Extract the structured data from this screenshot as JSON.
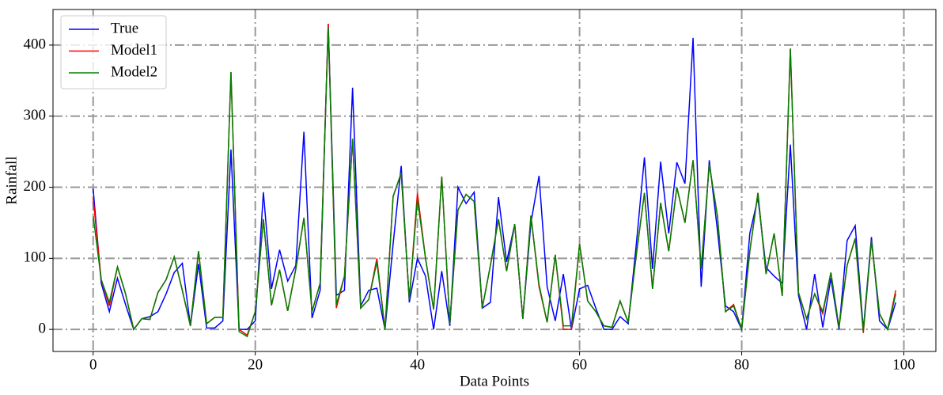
{
  "chart_data": {
    "type": "line",
    "xlabel": "Data Points",
    "ylabel": "Rainfall",
    "xlim": [
      -4.95,
      103.95
    ],
    "ylim": [
      -31,
      450
    ],
    "xticks": [
      0,
      20,
      40,
      60,
      80,
      100
    ],
    "yticks": [
      0,
      100,
      200,
      300,
      400
    ],
    "grid": true,
    "legend": "upper left",
    "series": [
      {
        "name": "True",
        "color": "#0000ff",
        "values": [
          198,
          65,
          25,
          72,
          35,
          0,
          15,
          18,
          25,
          50,
          80,
          93,
          5,
          92,
          2,
          2,
          12,
          253,
          0,
          0,
          12,
          193,
          57,
          112,
          68,
          90,
          278,
          16,
          55,
          430,
          48,
          55,
          340,
          33,
          55,
          58,
          0,
          120,
          230,
          38,
          100,
          75,
          0,
          82,
          5,
          200,
          177,
          193,
          30,
          38,
          186,
          95,
          148,
          15,
          150,
          216,
          60,
          12,
          78,
          0,
          57,
          62,
          30,
          0,
          0,
          18,
          8,
          120,
          242,
          85,
          236,
          135,
          235,
          205,
          410,
          60,
          238,
          140,
          33,
          25,
          0,
          135,
          185,
          87,
          75,
          65,
          260,
          48,
          0,
          78,
          3,
          72,
          0,
          125,
          146,
          0,
          130,
          12,
          0,
          38
        ]
      },
      {
        "name": "Model1",
        "color": "#ff0000",
        "values": [
          185,
          70,
          33,
          88,
          50,
          0,
          15,
          14,
          52,
          70,
          102,
          55,
          5,
          110,
          8,
          17,
          17,
          362,
          0,
          -8,
          25,
          155,
          34,
          84,
          26,
          85,
          157,
          25,
          65,
          430,
          30,
          75,
          268,
          30,
          42,
          100,
          0,
          187,
          220,
          42,
          192,
          100,
          28,
          215,
          8,
          168,
          190,
          180,
          30,
          90,
          155,
          82,
          148,
          15,
          160,
          60,
          10,
          105,
          0,
          0,
          120,
          40,
          25,
          5,
          3,
          40,
          10,
          105,
          192,
          57,
          178,
          110,
          200,
          150,
          238,
          85,
          232,
          160,
          25,
          35,
          0,
          110,
          192,
          78,
          135,
          47,
          395,
          52,
          15,
          50,
          22,
          80,
          3,
          90,
          128,
          -5,
          125,
          22,
          0,
          55
        ]
      },
      {
        "name": "Model2",
        "color": "#008000",
        "values": [
          160,
          70,
          38,
          88,
          50,
          0,
          15,
          14,
          52,
          70,
          102,
          55,
          5,
          110,
          8,
          17,
          17,
          362,
          -3,
          -10,
          25,
          155,
          34,
          84,
          26,
          85,
          157,
          25,
          65,
          425,
          35,
          75,
          268,
          30,
          42,
          95,
          0,
          187,
          220,
          42,
          183,
          100,
          28,
          215,
          8,
          168,
          190,
          180,
          30,
          90,
          155,
          82,
          148,
          15,
          160,
          63,
          10,
          105,
          5,
          5,
          120,
          40,
          25,
          5,
          3,
          40,
          10,
          105,
          192,
          57,
          178,
          110,
          200,
          150,
          238,
          85,
          232,
          160,
          25,
          33,
          0,
          110,
          192,
          78,
          135,
          47,
          395,
          52,
          15,
          50,
          25,
          80,
          3,
          90,
          128,
          -2,
          125,
          22,
          0,
          50
        ]
      }
    ]
  }
}
